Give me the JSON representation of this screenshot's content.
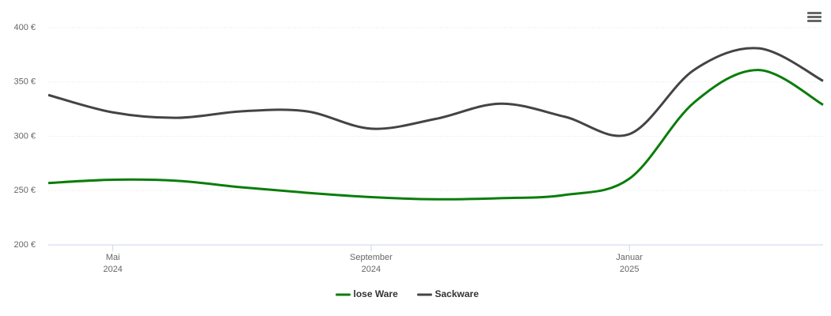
{
  "chart_data": {
    "type": "line",
    "x": [
      "2024-04",
      "2024-05",
      "2024-06",
      "2024-07",
      "2024-08",
      "2024-09",
      "2024-10",
      "2024-11",
      "2024-12",
      "2025-01",
      "2025-02",
      "2025-03",
      "2025-04"
    ],
    "xlim": [
      "2024-04",
      "2025-04"
    ],
    "xticks": [
      {
        "value": "2024-05",
        "label": [
          "Mai",
          "2024"
        ]
      },
      {
        "value": "2024-09",
        "label": [
          "September",
          "2024"
        ]
      },
      {
        "value": "2025-01",
        "label": [
          "Januar",
          "2025"
        ]
      }
    ],
    "ylim": [
      200,
      400
    ],
    "yticks": [
      {
        "value": 200,
        "label": "200 €"
      },
      {
        "value": 250,
        "label": "250 €"
      },
      {
        "value": 300,
        "label": "300 €"
      },
      {
        "value": 350,
        "label": "350 €"
      },
      {
        "value": 400,
        "label": "400 €"
      }
    ],
    "grid": true,
    "legend": "bottom",
    "series": [
      {
        "name": "lose Ware",
        "color": "#0a7d0a",
        "values": [
          257,
          260,
          259,
          253,
          248,
          244,
          242,
          243,
          246,
          261,
          331,
          361,
          329
        ]
      },
      {
        "name": "Sackware",
        "color": "#444444",
        "values": [
          338,
          322,
          317,
          323,
          323,
          307,
          316,
          330,
          318,
          302,
          361,
          381,
          351
        ]
      }
    ]
  }
}
